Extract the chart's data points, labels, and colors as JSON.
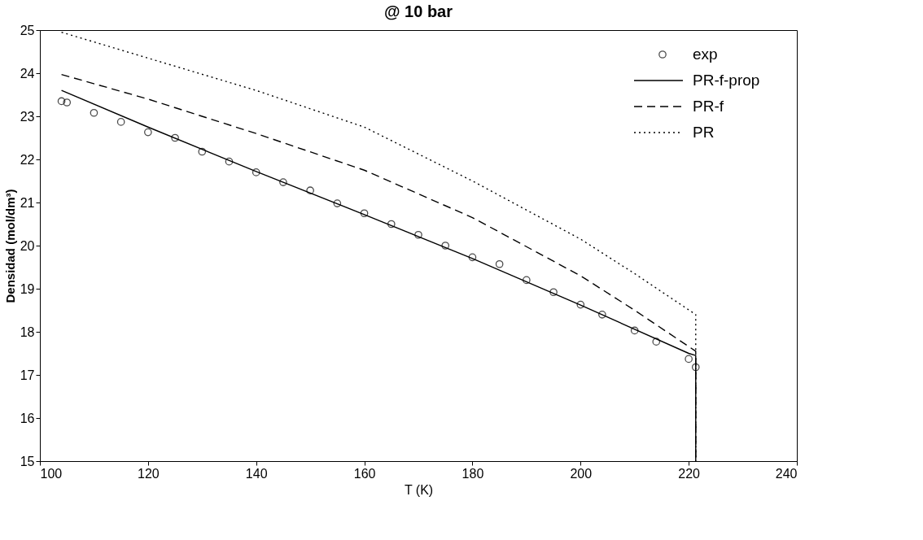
{
  "chart_data": {
    "type": "line",
    "title": "@ 10 bar",
    "xlabel": "T (K)",
    "ylabel": "Densidad (mol/dm³)",
    "xlim": [
      100,
      240
    ],
    "xticks": [
      100,
      120,
      140,
      160,
      180,
      200,
      220,
      240
    ],
    "ylim": [
      15,
      25
    ],
    "yticks": [
      15,
      16,
      17,
      18,
      19,
      20,
      21,
      22,
      23,
      24,
      25
    ],
    "grid": false,
    "legend": "top right",
    "series": [
      {
        "name": "exp",
        "type": "scatter",
        "marker": "circle",
        "color": "#000000",
        "x": [
          104,
          105,
          110,
          115,
          120,
          125,
          130,
          135,
          140,
          145,
          150,
          155,
          160,
          165,
          170,
          175,
          180,
          185,
          190,
          195,
          200,
          204,
          210,
          214,
          220,
          221.3
        ],
        "values": [
          23.35,
          23.32,
          23.08,
          22.87,
          22.63,
          22.5,
          22.18,
          21.95,
          21.7,
          21.47,
          21.28,
          20.98,
          20.75,
          20.5,
          20.25,
          20.0,
          19.73,
          19.57,
          19.2,
          18.92,
          18.63,
          18.4,
          18.03,
          17.77,
          17.37,
          17.18
        ]
      },
      {
        "name": "PR-f-prop",
        "type": "line",
        "line_style": "solid",
        "color": "#000000",
        "x": [
          104,
          120,
          140,
          160,
          180,
          200,
          220,
          221.3,
          221.3
        ],
        "values": [
          23.6,
          22.75,
          21.72,
          20.72,
          19.7,
          18.62,
          17.5,
          17.45,
          15
        ]
      },
      {
        "name": "PR-f",
        "type": "line",
        "line_style": "dashed",
        "color": "#000000",
        "x": [
          104,
          120,
          140,
          160,
          180,
          200,
          210,
          221.3,
          221.3
        ],
        "values": [
          23.97,
          23.4,
          22.6,
          21.75,
          20.65,
          19.3,
          18.5,
          17.55,
          15
        ]
      },
      {
        "name": "PR",
        "type": "line",
        "line_style": "dotted",
        "color": "#000000",
        "x": [
          104,
          120,
          140,
          160,
          180,
          200,
          210,
          221.3,
          221.3
        ],
        "values": [
          24.95,
          24.35,
          23.6,
          22.75,
          21.5,
          20.15,
          19.35,
          18.4,
          15
        ]
      }
    ]
  }
}
